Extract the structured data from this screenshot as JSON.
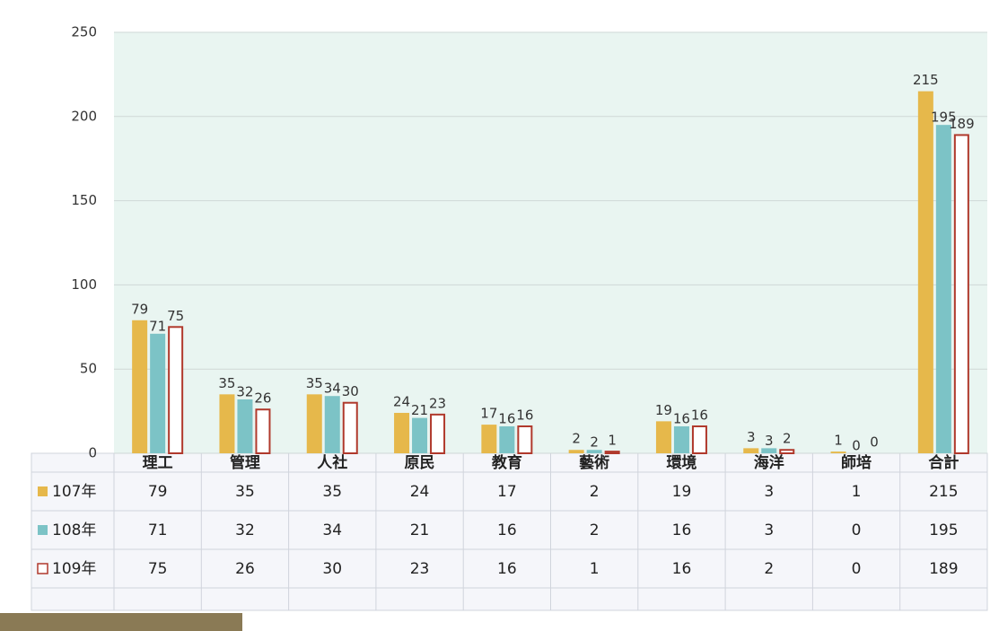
{
  "chart_data": {
    "type": "bar",
    "categories": [
      "理工",
      "管理",
      "人社",
      "原民",
      "教育",
      "藝術",
      "環境",
      "海洋",
      "師培",
      "合計"
    ],
    "series": [
      {
        "name": "107年",
        "color": "#e6b84b",
        "values": [
          79,
          35,
          35,
          24,
          17,
          2,
          19,
          3,
          1,
          215
        ]
      },
      {
        "name": "108年",
        "color": "#7cc3c6",
        "values": [
          71,
          32,
          34,
          21,
          16,
          2,
          16,
          3,
          0,
          195
        ]
      },
      {
        "name": "109年",
        "color": "#b0392c",
        "values": [
          75,
          26,
          30,
          23,
          16,
          1,
          16,
          2,
          0,
          189
        ]
      }
    ],
    "ylim": [
      0,
      250
    ],
    "yticks": [
      0,
      50,
      100,
      150,
      200,
      250
    ],
    "grid": true
  }
}
